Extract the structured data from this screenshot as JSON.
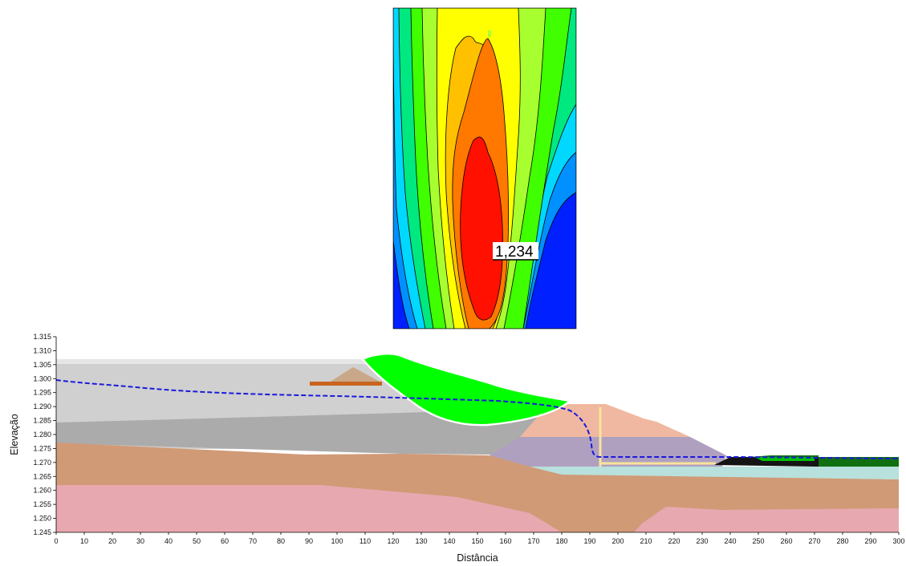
{
  "contour_plot": {
    "factor_of_safety_label": "1,234",
    "zone_colors": [
      "#0020ff",
      "#0090ff",
      "#00d8ff",
      "#00e880",
      "#40ff00",
      "#a8ff30",
      "#ffff00",
      "#ffc000",
      "#ff7800",
      "#ff1000"
    ]
  },
  "section": {
    "x_axis": {
      "title": "Distância",
      "range": [
        0,
        300
      ],
      "ticks": [
        "0",
        "10",
        "20",
        "30",
        "40",
        "50",
        "60",
        "70",
        "80",
        "90",
        "100",
        "110",
        "120",
        "130",
        "140",
        "150",
        "160",
        "170",
        "180",
        "190",
        "200",
        "210",
        "220",
        "230",
        "240",
        "250",
        "260",
        "270",
        "280",
        "290",
        "300"
      ]
    },
    "y_axis": {
      "title": "Elevação",
      "range": [
        1245,
        1315
      ],
      "ticks": [
        "1.245",
        "1.250",
        "1.255",
        "1.260",
        "1.265",
        "1.270",
        "1.275",
        "1.280",
        "1.285",
        "1.290",
        "1.295",
        "1.300",
        "1.305",
        "1.310",
        "1.315"
      ]
    },
    "layer_colors": {
      "surface_fill": "#e6e6e6",
      "upper_fill": "#d0d0d0",
      "gray_layer": "#ababab",
      "tan_layer": "#d09a76",
      "pink_layer": "#e8a8b0",
      "purple_core": "#b0a0c0",
      "peach_embankment": "#f0b8a0",
      "cyan_drain": "#b8e0dc",
      "pile_pad": "#c8a888",
      "orange_bar": "#c8641e",
      "slip_mass": "#00ff00",
      "phreatic_line": "#1a1adc",
      "drain_line": "#f8e49c",
      "toe_black": "#141414",
      "toe_green": "#107010"
    }
  }
}
